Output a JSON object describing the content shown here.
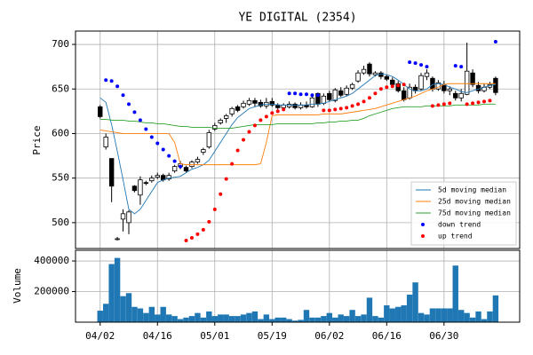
{
  "chart_data": [
    {
      "type": "candlestick",
      "title": "YE DIGITAL (2354)",
      "ylabel": "Price",
      "categories": [
        "04/02",
        null,
        null,
        null,
        null,
        null,
        null,
        null,
        null,
        null,
        "04/16",
        null,
        null,
        null,
        null,
        null,
        null,
        null,
        null,
        null,
        "05/01",
        null,
        null,
        null,
        null,
        null,
        null,
        null,
        null,
        null,
        "05/19",
        null,
        null,
        null,
        null,
        null,
        null,
        null,
        null,
        null,
        "06/02",
        null,
        null,
        null,
        null,
        null,
        null,
        null,
        null,
        null,
        "06/16",
        null,
        null,
        null,
        null,
        null,
        null,
        null,
        null,
        null,
        "06/30",
        null,
        null,
        null,
        null,
        null,
        null,
        null,
        null,
        null
      ],
      "open": [
        630,
        585,
        572,
        482,
        504,
        500,
        541,
        531,
        545,
        547,
        551,
        553,
        549,
        558,
        563,
        562,
        563,
        568,
        579,
        585,
        605,
        612,
        617,
        622,
        630,
        630,
        633,
        637,
        635,
        631,
        636,
        632,
        629,
        630,
        633,
        629,
        632,
        630,
        645,
        634,
        645,
        637,
        648,
        644,
        651,
        659,
        668,
        678,
        666,
        668,
        664,
        660,
        656,
        648,
        640,
        652,
        650,
        664,
        662,
        650,
        655,
        648,
        645,
        640,
        644,
        668,
        654,
        648,
        652,
        662
      ],
      "high": [
        632,
        600,
        572,
        484,
        515,
        514,
        542,
        552,
        547,
        553,
        556,
        555,
        556,
        565,
        569,
        564,
        570,
        574,
        584,
        604,
        612,
        617,
        622,
        630,
        632,
        637,
        640,
        640,
        638,
        640,
        640,
        634,
        634,
        636,
        635,
        635,
        636,
        644,
        646,
        645,
        648,
        651,
        652,
        654,
        657,
        671,
        676,
        680,
        670,
        670,
        666,
        663,
        659,
        652,
        656,
        655,
        668,
        672,
        664,
        660,
        659,
        653,
        648,
        650,
        702,
        672,
        658,
        656,
        658,
        664
      ],
      "low": [
        617,
        582,
        523,
        480,
        490,
        487,
        534,
        520,
        542,
        545,
        549,
        546,
        547,
        556,
        560,
        556,
        561,
        566,
        576,
        583,
        603,
        610,
        612,
        619,
        624,
        628,
        631,
        630,
        629,
        628,
        630,
        627,
        626,
        628,
        627,
        627,
        628,
        629,
        630,
        632,
        636,
        635,
        641,
        642,
        649,
        657,
        666,
        664,
        664,
        661,
        659,
        653,
        646,
        636,
        638,
        645,
        648,
        660,
        647,
        648,
        645,
        643,
        637,
        636,
        643,
        652,
        645,
        646,
        650,
        643
      ],
      "close": [
        619,
        596,
        541,
        482,
        510,
        512,
        536,
        548,
        544,
        550,
        553,
        548,
        553,
        563,
        566,
        558,
        568,
        571,
        582,
        601,
        609,
        615,
        620,
        628,
        626,
        634,
        637,
        634,
        631,
        635,
        632,
        629,
        632,
        633,
        629,
        632,
        630,
        640,
        633,
        642,
        638,
        649,
        643,
        651,
        655,
        668,
        672,
        667,
        668,
        664,
        661,
        655,
        648,
        638,
        652,
        648,
        665,
        668,
        650,
        657,
        648,
        650,
        640,
        645,
        670,
        655,
        648,
        652,
        655,
        646
      ],
      "ylim": [
        471,
        715
      ],
      "yticks": [
        500,
        550,
        600,
        650,
        700
      ],
      "grid": true,
      "legend": "lower right",
      "series": [
        {
          "name": "5d moving median",
          "color": "#1f77b4",
          "kind": "line",
          "values": [
            640,
            635,
            610,
            580,
            548,
            515,
            510,
            515,
            525,
            535,
            545,
            548,
            550,
            551,
            552,
            556,
            560,
            562,
            565,
            570,
            580,
            590,
            600,
            610,
            618,
            623,
            628,
            630,
            632,
            633,
            633,
            632,
            632,
            632,
            632,
            632,
            632,
            633,
            633,
            634,
            636,
            638,
            640,
            642,
            645,
            650,
            655,
            660,
            665,
            667,
            666,
            664,
            660,
            655,
            650,
            648,
            648,
            650,
            655,
            656,
            655,
            652,
            650,
            647,
            646,
            648,
            650,
            652,
            654,
            655
          ]
        },
        {
          "name": "25d moving median",
          "color": "#ff7f0e",
          "kind": "line",
          "values": [
            604,
            603,
            602,
            601,
            600,
            600,
            600,
            600,
            600,
            600,
            600,
            600,
            600,
            590,
            566,
            565,
            565,
            565,
            565,
            565,
            565,
            565,
            565,
            565,
            565,
            565,
            565,
            565,
            566,
            590,
            620,
            621,
            621,
            621,
            621,
            621,
            621,
            621,
            621,
            622,
            622,
            622,
            622,
            623,
            624,
            625,
            626,
            627,
            628,
            630,
            632,
            634,
            636,
            638,
            640,
            642,
            645,
            648,
            650,
            652,
            655,
            656,
            656,
            656,
            656,
            656,
            656,
            656,
            656,
            656
          ]
        },
        {
          "name": "75d moving median",
          "color": "#2ca02c",
          "kind": "line",
          "values": [
            616,
            616,
            615,
            615,
            615,
            614,
            614,
            613,
            612,
            612,
            611,
            611,
            610,
            609,
            608,
            608,
            607,
            607,
            607,
            607,
            606,
            606,
            606,
            606,
            607,
            608,
            609,
            610,
            610,
            610,
            610,
            611,
            611,
            611,
            611,
            611,
            611,
            611,
            612,
            612,
            613,
            613,
            614,
            614,
            615,
            615,
            617,
            620,
            622,
            624,
            626,
            628,
            629,
            630,
            630,
            630,
            630,
            631,
            631,
            631,
            631,
            631,
            632,
            632,
            632,
            632,
            632,
            633,
            633,
            633
          ]
        },
        {
          "name": "down trend",
          "color": "#0000ff",
          "kind": "scatter",
          "values": [
            null,
            660,
            659,
            653,
            643,
            633,
            624,
            615,
            605,
            596,
            589,
            582,
            575,
            569,
            563,
            null,
            null,
            null,
            null,
            null,
            null,
            null,
            null,
            null,
            null,
            null,
            null,
            null,
            null,
            null,
            null,
            null,
            null,
            645,
            645,
            644,
            644,
            643,
            643,
            null,
            null,
            null,
            null,
            null,
            null,
            null,
            null,
            null,
            null,
            null,
            null,
            null,
            null,
            null,
            680,
            679,
            677,
            675,
            null,
            null,
            null,
            null,
            676,
            675,
            null,
            null,
            null,
            null,
            null,
            703
          ]
        },
        {
          "name": "up trend",
          "color": "#ff0000",
          "kind": "scatter",
          "values": [
            null,
            null,
            null,
            null,
            null,
            null,
            null,
            null,
            null,
            null,
            null,
            null,
            null,
            null,
            null,
            480,
            483,
            487,
            492,
            501,
            515,
            532,
            549,
            566,
            581,
            593,
            602,
            609,
            615,
            619,
            623,
            625,
            627,
            null,
            null,
            null,
            null,
            null,
            null,
            626,
            626,
            627,
            628,
            629,
            631,
            633,
            636,
            640,
            645,
            650,
            652,
            653,
            654,
            655,
            null,
            null,
            null,
            null,
            631,
            632,
            633,
            634,
            null,
            null,
            633,
            634,
            635,
            636,
            637,
            null
          ]
        }
      ]
    },
    {
      "type": "bar",
      "ylabel": "Volume",
      "color": "#1f77b4",
      "ylim": [
        0,
        470000
      ],
      "yticks": [
        200000,
        400000
      ],
      "grid": true,
      "values": [
        75000,
        120000,
        380000,
        420000,
        170000,
        190000,
        100000,
        90000,
        60000,
        100000,
        50000,
        100000,
        50000,
        40000,
        20000,
        30000,
        40000,
        60000,
        30000,
        70000,
        40000,
        50000,
        50000,
        40000,
        40000,
        50000,
        60000,
        70000,
        20000,
        50000,
        20000,
        30000,
        30000,
        20000,
        10000,
        15000,
        80000,
        30000,
        30000,
        40000,
        60000,
        30000,
        50000,
        40000,
        80000,
        40000,
        50000,
        160000,
        40000,
        30000,
        110000,
        90000,
        100000,
        110000,
        180000,
        260000,
        60000,
        50000,
        90000,
        90000,
        90000,
        90000,
        370000,
        80000,
        60000,
        30000,
        70000,
        20000,
        70000,
        175000
      ]
    }
  ]
}
